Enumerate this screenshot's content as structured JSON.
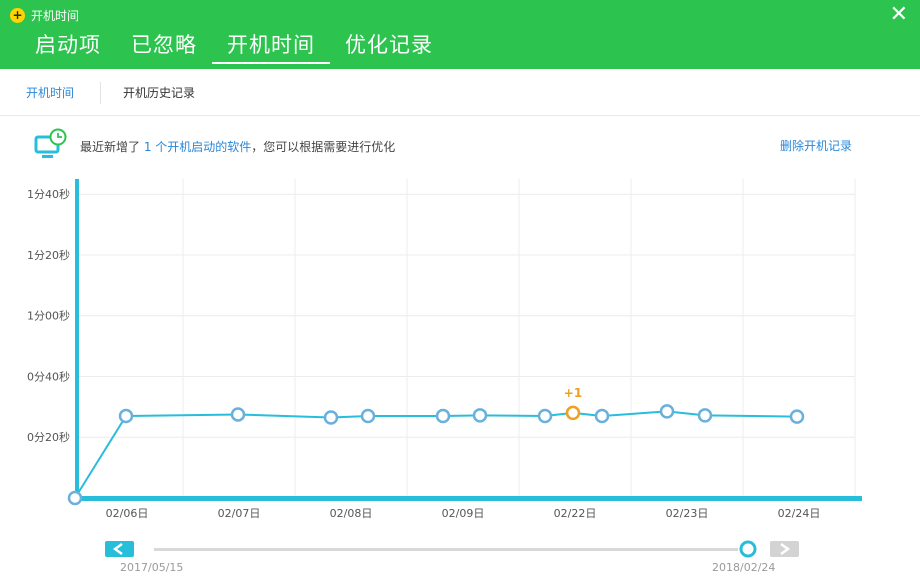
{
  "window": {
    "title": "开机时间"
  },
  "main_tabs": [
    {
      "label": "启动项"
    },
    {
      "label": "已忽略"
    },
    {
      "label": "开机时间",
      "active": true
    },
    {
      "label": "优化记录"
    }
  ],
  "sub_tabs": [
    {
      "label": "开机时间"
    },
    {
      "label": "开机历史记录"
    }
  ],
  "info": {
    "prefix": "最近新增了",
    "highlight": "1 个开机启动的软件",
    "suffix": "，您可以根据需要进行优化",
    "delete_label": "删除开机记录"
  },
  "colors": {
    "header": "#2cc44e",
    "line": "#28bddb",
    "point": "#6ab0dd",
    "highlight": "#f0a020",
    "link": "#2a88d8"
  },
  "chart_data": {
    "type": "line",
    "y_unit": "seconds",
    "ylim": [
      0,
      105
    ],
    "y_ticks": [
      {
        "value": 20,
        "label": "0分20秒"
      },
      {
        "value": 40,
        "label": "0分40秒"
      },
      {
        "value": 60,
        "label": "1分00秒"
      },
      {
        "value": 80,
        "label": "1分20秒"
      },
      {
        "value": 100,
        "label": "1分40秒"
      }
    ],
    "x_labels": [
      "02/06日",
      "02/07日",
      "02/08日",
      "02/09日",
      "02/22日",
      "02/23日",
      "02/24日"
    ],
    "points": [
      {
        "value": 0
      },
      {
        "value": 27
      },
      {
        "value": 27.5
      },
      {
        "value": 26.5
      },
      {
        "value": 27
      },
      {
        "value": 27
      },
      {
        "value": 27.2
      },
      {
        "value": 27
      },
      {
        "value": 28,
        "annotation": "+1"
      },
      {
        "value": 27
      },
      {
        "value": 28.5
      },
      {
        "value": 27.2
      },
      {
        "value": 26.8
      }
    ],
    "range_start": "2017/05/15",
    "range_end": "2018/02/24"
  }
}
